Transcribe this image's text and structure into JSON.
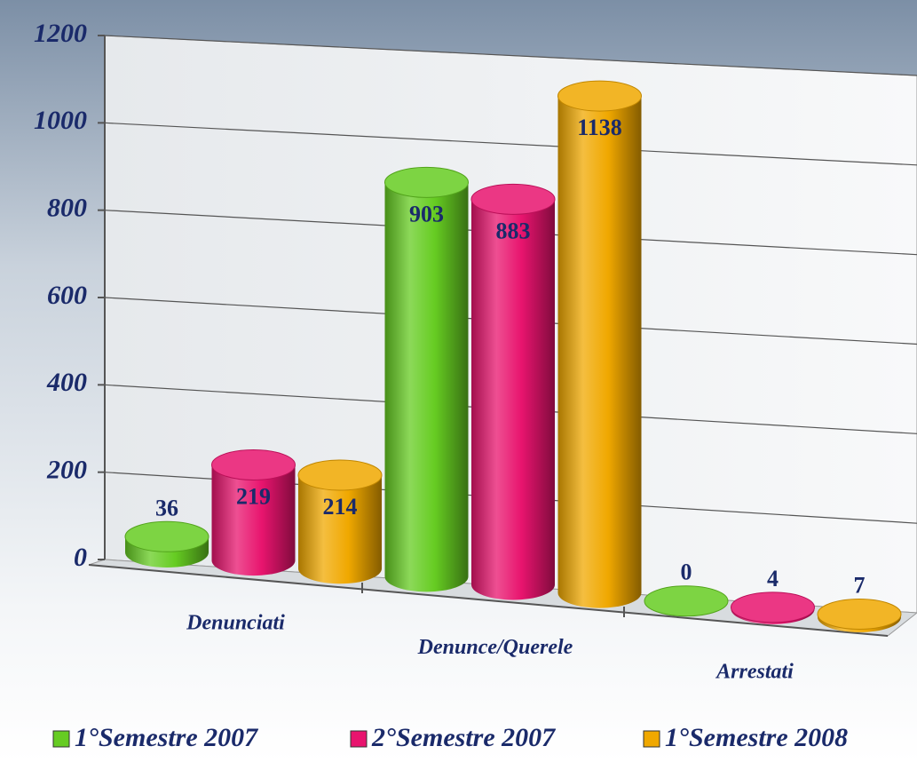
{
  "chart_data": {
    "type": "bar3d",
    "categories": [
      "Denunciati",
      "Denunce/Querele",
      "Arrestati"
    ],
    "series": [
      {
        "name": "1°Semestre 2007",
        "color": "#66cc22",
        "values": [
          36,
          903,
          0
        ]
      },
      {
        "name": "2°Semestre 2007",
        "color": "#e8146e",
        "values": [
          219,
          883,
          4
        ]
      },
      {
        "name": "1°Semestre 2008",
        "color": "#f0a800",
        "values": [
          214,
          1138,
          7
        ]
      }
    ],
    "ylim": [
      0,
      1200
    ],
    "yticks": [
      0,
      200,
      400,
      600,
      800,
      1000,
      1200
    ],
    "grid": true,
    "legend": "bottom"
  }
}
